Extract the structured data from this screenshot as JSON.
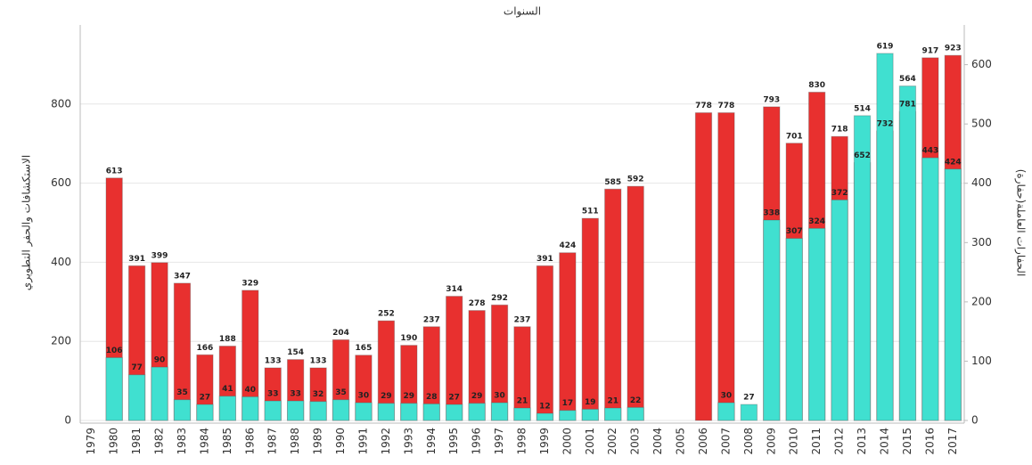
{
  "chart_data": {
    "type": "bar",
    "title": "السنوات",
    "y_label": "الاستكشافات والحفر التطويري",
    "y2_label": "الحفارات العاملة(حفارة)",
    "categories": [
      "1979",
      "1980",
      "1981",
      "1982",
      "1983",
      "1984",
      "1985",
      "1986",
      "1987",
      "1988",
      "1989",
      "1990",
      "1991",
      "1992",
      "1993",
      "1994",
      "1995",
      "1996",
      "1997",
      "1998",
      "1999",
      "2000",
      "2001",
      "2002",
      "2003",
      "2004",
      "2005",
      "2006",
      "2007",
      "2008",
      "2009",
      "2010",
      "2011",
      "2012",
      "2013",
      "2014",
      "2015",
      "2016",
      "2017"
    ],
    "series": [
      {
        "color": "#e8302f",
        "values": [
          null,
          613,
          391,
          399,
          347,
          166,
          188,
          329,
          133,
          154,
          133,
          204,
          165,
          252,
          190,
          237,
          314,
          278,
          292,
          237,
          391,
          424,
          511,
          585,
          592,
          null,
          null,
          778,
          778,
          null,
          793,
          701,
          830,
          718,
          652,
          732,
          781,
          917,
          923
        ]
      },
      {
        "color": "#40e0d0",
        "axis": "y2",
        "values": [
          null,
          106,
          77,
          90,
          35,
          27,
          41,
          40,
          33,
          33,
          32,
          35,
          30,
          29,
          29,
          28,
          27,
          29,
          30,
          21,
          12,
          17,
          19,
          21,
          22,
          null,
          null,
          null,
          30,
          27,
          338,
          307,
          324,
          372,
          514,
          619,
          564,
          443,
          424
        ]
      }
    ],
    "ylim": [
      0,
      1000
    ],
    "yticks": [
      0,
      200,
      400,
      600,
      800
    ],
    "y2lim": [
      0,
      667
    ],
    "y2ticks": [
      0,
      100,
      200,
      300,
      400,
      500,
      600
    ],
    "grid": true
  }
}
